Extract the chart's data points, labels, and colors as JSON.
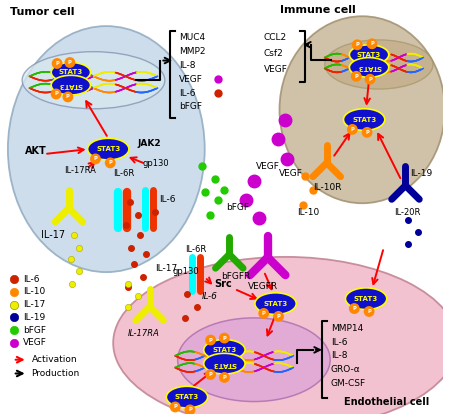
{
  "bg_color": "#ffffff",
  "tumor_cell_color": "#c5d8e8",
  "immune_cell_color": "#c8b89a",
  "endothelial_cell_color": "#f0b8c8",
  "endothelial_nuc_color": "#e0a8d8",
  "stat3_fill": "#1010cc",
  "stat3_edge": "#ffff00",
  "stat3_text": "#ffff00",
  "p_fill": "#ff8800",
  "legend_items": [
    [
      "IL-6",
      "#cc2200"
    ],
    [
      "IL-10",
      "#ff8800"
    ],
    [
      "IL-17",
      "#eeee00"
    ],
    [
      "IL-19",
      "#000099"
    ],
    [
      "bFGF",
      "#22cc00"
    ],
    [
      "VEGF",
      "#cc00cc"
    ]
  ]
}
